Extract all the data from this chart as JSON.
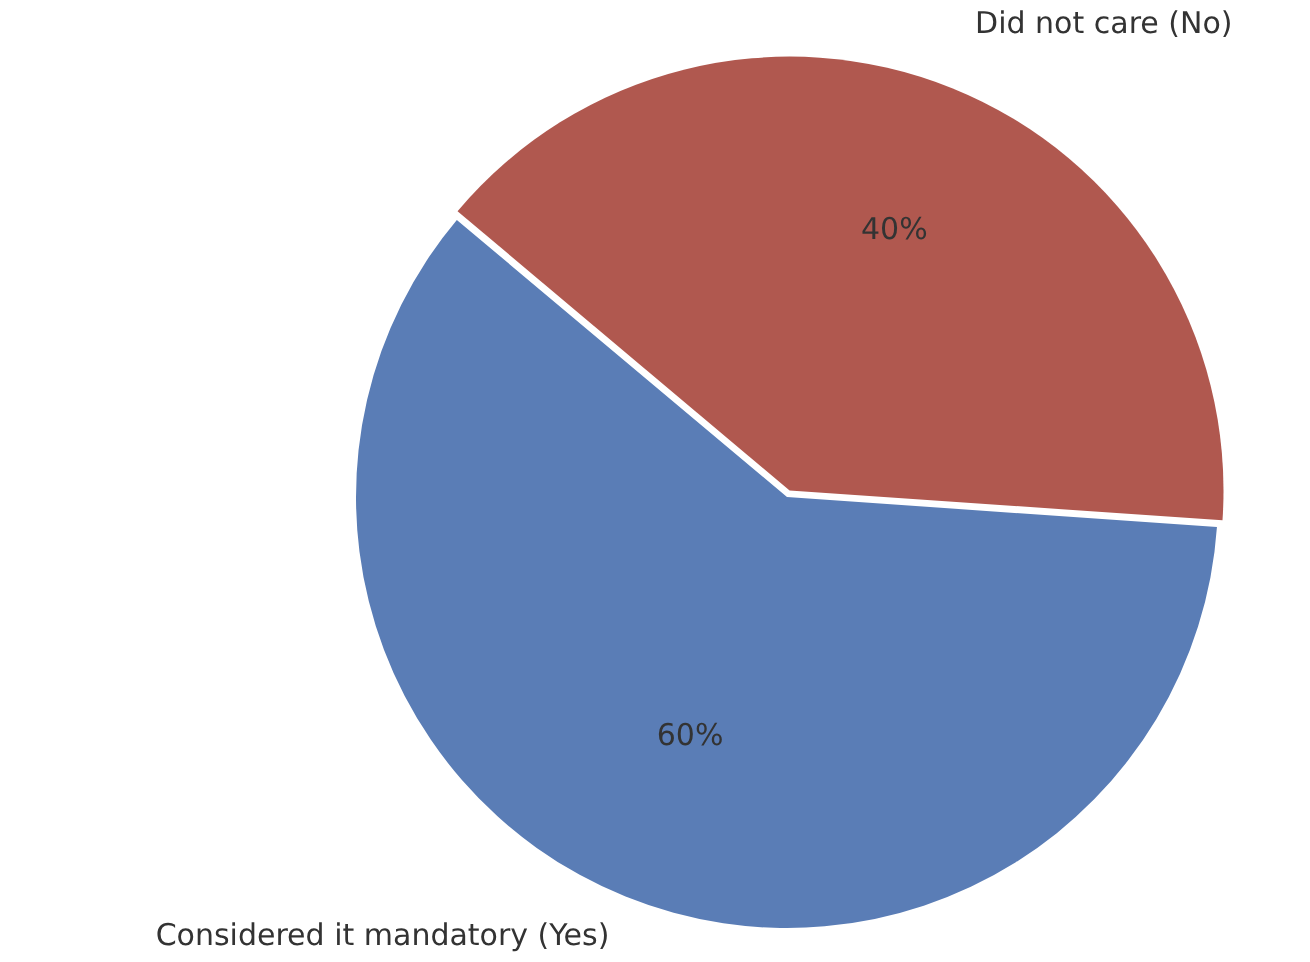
{
  "chart_data": {
    "type": "pie",
    "categories": [
      "Considered it mandatory (Yes)",
      "Did not care (No)"
    ],
    "values": [
      60,
      40
    ],
    "colors": [
      "#5a7db6",
      "#b0584f"
    ],
    "value_labels": [
      "60%",
      "40%"
    ],
    "legend": false
  }
}
